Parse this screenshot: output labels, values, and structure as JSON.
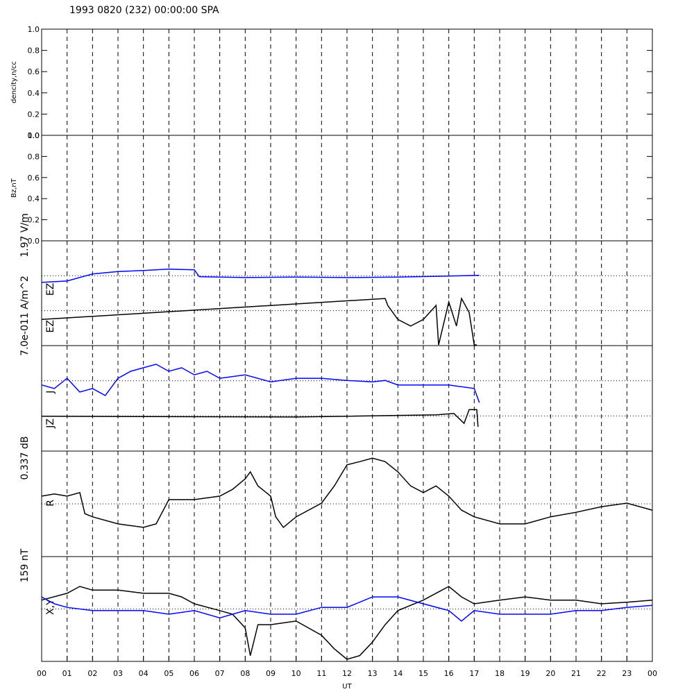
{
  "chart_data": [
    {
      "type": "line",
      "title": "1993 0820 (232) 00:00:00 SPA",
      "ylabel": "dencity,n/cc",
      "xlim": [
        0,
        24
      ],
      "ylim": [
        0,
        1
      ],
      "yticks": [
        {
          "value": 0,
          "label": "0.0"
        },
        {
          "value": 0.2,
          "label": "0.2"
        },
        {
          "value": 0.4,
          "label": "0.4"
        },
        {
          "value": 0.6,
          "label": "0.6"
        },
        {
          "value": 0.8,
          "label": "0.8"
        },
        {
          "value": 1,
          "label": "1.0"
        }
      ]
    },
    {
      "type": "line",
      "ylabel": "Bz,nT",
      "xlim": [
        0,
        24
      ],
      "ylim": [
        0,
        1
      ],
      "yticks": [
        {
          "value": 0,
          "label": "0.0"
        },
        {
          "value": 0.2,
          "label": "0.2"
        },
        {
          "value": 0.4,
          "label": "0.4"
        },
        {
          "value": 0.6,
          "label": "0.6"
        },
        {
          "value": 0.8,
          "label": "0.8"
        },
        {
          "value": 1,
          "label": "1.0"
        }
      ]
    },
    {
      "type": "line",
      "scale_label": "1.97 V/m",
      "trace_labels": [
        "EZ",
        "EZ"
      ],
      "xlim": [
        0,
        24
      ],
      "ylim": [
        0,
        3
      ],
      "reference_lines": [
        1,
        2
      ],
      "series": [
        {
          "color": "#0000ff",
          "x": [
            0,
            1,
            2,
            3,
            4,
            5,
            6,
            6.2,
            8,
            10,
            12,
            14,
            16,
            17.2
          ],
          "values": [
            1.81,
            1.85,
            2.05,
            2.12,
            2.15,
            2.19,
            2.17,
            1.97,
            1.95,
            1.96,
            1.95,
            1.96,
            1.99,
            2.01
          ]
        },
        {
          "color": "#000000",
          "x": [
            0,
            13.5,
            13.6,
            14,
            14.5,
            15,
            15.5,
            15.6,
            16,
            16.3,
            16.5,
            16.8,
            17,
            17.1
          ],
          "values": [
            0.75,
            1.35,
            1.15,
            0.75,
            0.56,
            0.75,
            1.15,
            0.02,
            1.25,
            0.56,
            1.35,
            0.95,
            0.02,
            0.02
          ]
        }
      ]
    },
    {
      "type": "line",
      "scale_label": "7.0e-011 A/m^2",
      "trace_labels": [
        "J",
        "JZ"
      ],
      "xlim": [
        0,
        24
      ],
      "ylim": [
        0,
        3
      ],
      "reference_lines": [
        1,
        2
      ],
      "series": [
        {
          "color": "#0000ff",
          "x": [
            0,
            0.5,
            1,
            1.5,
            2,
            2.5,
            3,
            3.5,
            4,
            4.5,
            5,
            5.5,
            6,
            6.5,
            7,
            8,
            9,
            10,
            11,
            12,
            13,
            13.5,
            14,
            15,
            16,
            17,
            17.2
          ],
          "values": [
            1.88,
            1.78,
            2.07,
            1.68,
            1.78,
            1.58,
            2.07,
            2.27,
            2.37,
            2.47,
            2.27,
            2.37,
            2.17,
            2.27,
            2.07,
            2.17,
            1.97,
            2.07,
            2.07,
            2.01,
            1.97,
            2.01,
            1.88,
            1.88,
            1.88,
            1.78,
            1.38
          ]
        },
        {
          "color": "#000000",
          "x": [
            0,
            10,
            15.5,
            16.2,
            16.6,
            16.8,
            17.1,
            17.15
          ],
          "values": [
            0.99,
            0.97,
            1.03,
            1.07,
            0.79,
            1.18,
            1.18,
            0.69
          ]
        }
      ]
    },
    {
      "type": "line",
      "scale_label": "0.337 dB",
      "trace_labels": [
        "R"
      ],
      "xlim": [
        0,
        24
      ],
      "ylim": [
        0,
        3
      ],
      "reference_lines": [
        1.5
      ],
      "series": [
        {
          "color": "#000000",
          "x": [
            0,
            0.5,
            1,
            1.5,
            1.7,
            2,
            3,
            4,
            4.5,
            5,
            6,
            7,
            7.5,
            8,
            8.2,
            8.5,
            9,
            9.2,
            9.5,
            10,
            11,
            11.5,
            12,
            12.5,
            13,
            13.5,
            14,
            14.5,
            15,
            15.5,
            16,
            16.5,
            17,
            18,
            19,
            20,
            21,
            22,
            23,
            24
          ],
          "values": [
            1.72,
            1.78,
            1.72,
            1.82,
            1.22,
            1.13,
            0.93,
            0.83,
            0.93,
            1.62,
            1.62,
            1.72,
            1.91,
            2.21,
            2.41,
            2.01,
            1.72,
            1.13,
            0.83,
            1.13,
            1.52,
            2.01,
            2.61,
            2.7,
            2.8,
            2.7,
            2.41,
            2.01,
            1.82,
            2.01,
            1.72,
            1.32,
            1.13,
            0.93,
            0.93,
            1.13,
            1.26,
            1.42,
            1.52,
            1.32
          ]
        }
      ]
    },
    {
      "type": "line",
      "scale_label": "159 nT",
      "trace_labels": [
        "X,Y"
      ],
      "xlabel": "UT",
      "xlim": [
        0,
        24
      ],
      "ylim": [
        0,
        2
      ],
      "reference_lines": [
        1
      ],
      "xticks": [
        {
          "value": 0,
          "label": "00"
        },
        {
          "value": 1,
          "label": "01"
        },
        {
          "value": 2,
          "label": "02"
        },
        {
          "value": 3,
          "label": "03"
        },
        {
          "value": 4,
          "label": "04"
        },
        {
          "value": 5,
          "label": "05"
        },
        {
          "value": 6,
          "label": "06"
        },
        {
          "value": 7,
          "label": "07"
        },
        {
          "value": 8,
          "label": "08"
        },
        {
          "value": 9,
          "label": "09"
        },
        10,
        11,
        12,
        13,
        14,
        15,
        16,
        17,
        18,
        19,
        20,
        21,
        22,
        23,
        {
          "value": 24,
          "label": "00"
        }
      ],
      "series": [
        {
          "color": "#000000",
          "x": [
            0,
            1,
            1.5,
            2,
            3,
            4,
            5,
            5.5,
            6,
            7,
            7.5,
            8,
            8.2,
            8.5,
            9,
            10,
            11,
            11.5,
            12,
            12.5,
            13,
            13.5,
            14,
            15,
            16,
            16.5,
            17,
            18,
            19,
            20,
            21,
            22,
            23,
            24
          ],
          "values": [
            1.17,
            1.3,
            1.43,
            1.36,
            1.36,
            1.3,
            1.3,
            1.23,
            1.1,
            0.97,
            0.9,
            0.64,
            0.11,
            0.7,
            0.7,
            0.77,
            0.5,
            0.24,
            0.04,
            0.11,
            0.37,
            0.7,
            0.97,
            1.17,
            1.43,
            1.23,
            1.1,
            1.17,
            1.23,
            1.17,
            1.17,
            1.1,
            1.13,
            1.17
          ]
        },
        {
          "color": "#0000ff",
          "x": [
            0,
            0.5,
            1,
            2,
            3,
            4,
            5,
            6,
            7,
            8,
            9,
            10,
            11,
            12,
            13,
            14,
            15,
            16,
            16.5,
            17,
            18,
            19,
            20,
            21,
            22,
            23,
            24
          ],
          "values": [
            1.23,
            1.1,
            1.03,
            0.97,
            0.97,
            0.97,
            0.9,
            0.97,
            0.83,
            0.97,
            0.9,
            0.9,
            1.03,
            1.03,
            1.23,
            1.23,
            1.1,
            0.97,
            0.77,
            0.97,
            0.9,
            0.9,
            0.9,
            0.97,
            0.97,
            1.03,
            1.07
          ]
        }
      ]
    }
  ]
}
